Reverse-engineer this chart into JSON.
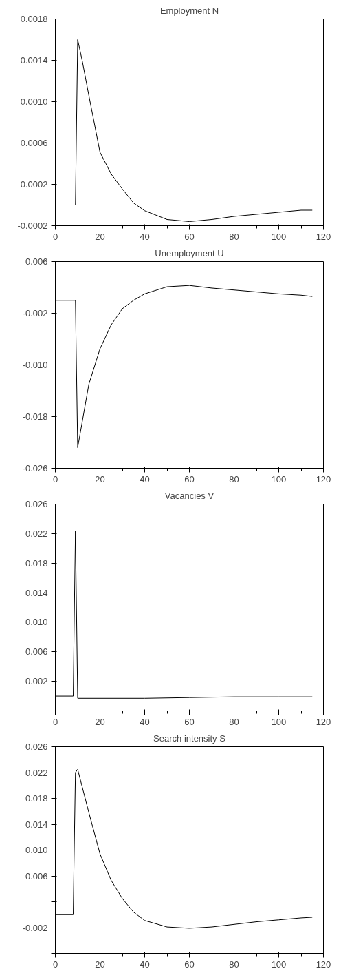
{
  "chart_data": [
    {
      "type": "line",
      "title": "Employment N",
      "x": [
        0,
        9,
        10,
        12,
        15,
        20,
        25,
        30,
        35,
        40,
        50,
        60,
        70,
        80,
        90,
        100,
        110,
        115
      ],
      "series": [
        {
          "color": "#000000",
          "values": [
            0,
            0,
            0.0016,
            0.0014,
            0.00106,
            0.00051,
            0.0003,
            0.000155,
            2e-05,
            -5.5e-05,
            -0.00014,
            -0.00016,
            -0.00014,
            -0.00011,
            -9e-05,
            -7e-05,
            -5e-05,
            -5e-05
          ]
        }
      ],
      "xlim": [
        0,
        120
      ],
      "xticks": [
        0,
        20,
        40,
        60,
        80,
        100,
        120
      ],
      "ylim": [
        -0.0002,
        0.0018
      ],
      "yticks": [
        {
          "value": -0.0002,
          "label": "-0.0002"
        },
        0.0002,
        0.0006,
        {
          "value": 0.001,
          "label": "0.0010"
        },
        0.0014,
        0.0018
      ],
      "line_style": "solid"
    },
    {
      "type": "line",
      "title": "Unemployment U",
      "x": [
        0,
        9,
        10,
        15,
        20,
        25,
        30,
        35,
        40,
        50,
        60,
        70,
        80,
        90,
        100,
        110,
        115
      ],
      "series": [
        {
          "color": "#000000",
          "values": [
            0,
            0,
            -0.0228,
            -0.013,
            -0.0075,
            -0.0038,
            -0.0013,
            0.0,
            0.001,
            0.0021,
            0.0023,
            0.0019,
            0.0016,
            0.0013,
            0.001,
            0.0008,
            0.0006
          ]
        }
      ],
      "xlim": [
        0,
        120
      ],
      "xticks": [
        0,
        20,
        40,
        60,
        80,
        100,
        120
      ],
      "ylim": [
        -0.026,
        0.006
      ],
      "yticks": [
        {
          "value": -0.026,
          "label": "-0.026"
        },
        {
          "value": -0.018,
          "label": "-0.018"
        },
        {
          "value": -0.01,
          "label": "-0.010"
        },
        {
          "value": -0.002,
          "label": "-0.002"
        },
        0.006
      ],
      "line_style": "solid"
    },
    {
      "type": "line",
      "title": "Vacancies V",
      "x": [
        0,
        8,
        9,
        10,
        20,
        40,
        60,
        80,
        100,
        115
      ],
      "series": [
        {
          "color": "#000000",
          "values": [
            0,
            0,
            0.0224,
            -0.0003,
            -0.0003,
            -0.0003,
            -0.0002,
            -0.0001,
            -0.0001,
            -0.0001
          ]
        }
      ],
      "xlim": [
        0,
        120
      ],
      "xticks": [
        0,
        20,
        40,
        60,
        80,
        100,
        120
      ],
      "ylim": [
        -0.002,
        0.026
      ],
      "yticks": [
        {
          "value": -0.002,
          "label": null
        },
        0.002,
        0.006,
        {
          "value": 0.01,
          "label": "0.010"
        },
        0.014,
        0.018,
        0.022,
        0.026
      ],
      "line_style": "solid"
    },
    {
      "type": "line",
      "title": "Search intensity S",
      "x": [
        0,
        8,
        9,
        10,
        15,
        20,
        25,
        30,
        35,
        40,
        50,
        60,
        70,
        80,
        90,
        100,
        110,
        115
      ],
      "series": [
        {
          "color": "#000000",
          "values": [
            0,
            0,
            0.022,
            0.0225,
            0.0158,
            0.0094,
            0.0053,
            0.0025,
            0.0004,
            -0.0009,
            -0.0019,
            -0.0021,
            -0.0019,
            -0.0015,
            -0.0011,
            -0.0008,
            -0.0005,
            -0.0004
          ]
        }
      ],
      "xlim": [
        0,
        120
      ],
      "xticks": [
        0,
        20,
        40,
        60,
        80,
        100,
        120
      ],
      "ylim": [
        -0.006,
        0.026
      ],
      "yticks": [
        {
          "value": -0.006,
          "label": null
        },
        {
          "value": -0.002,
          "label": "-0.002"
        },
        {
          "value": 0.002,
          "label": null
        },
        0.006,
        {
          "value": 0.01,
          "label": "0.010"
        },
        0.014,
        0.018,
        0.022,
        0.026
      ],
      "line_style": "solid"
    }
  ]
}
